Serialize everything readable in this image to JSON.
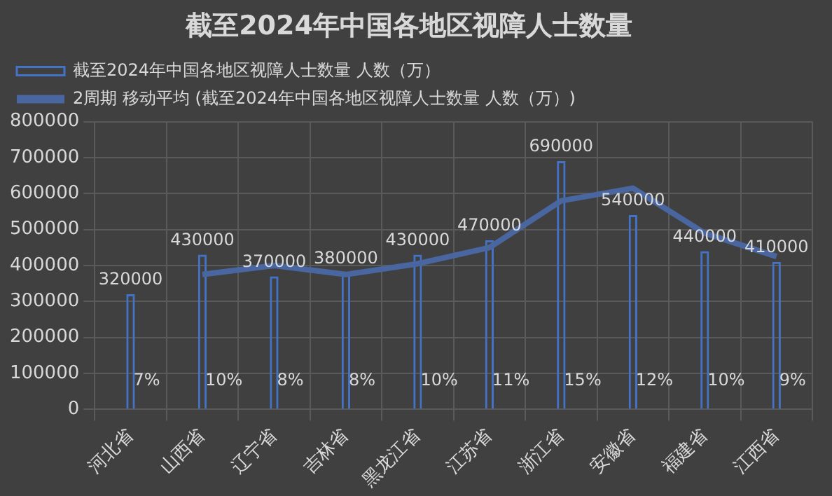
{
  "chart_data": {
    "type": "bar",
    "title": "截至2024年中国各地区视障人士数量",
    "categories": [
      "河北省",
      "山西省",
      "辽宁省",
      "吉林省",
      "黑龙江省",
      "江苏省",
      "浙江省",
      "安徽省",
      "福建省",
      "江西省"
    ],
    "series": [
      {
        "name": "截至2024年中国各地区视障人士数量 人数（万）",
        "color": "#4472c4",
        "values": [
          320000,
          430000,
          370000,
          380000,
          430000,
          470000,
          690000,
          540000,
          440000,
          410000
        ],
        "value_labels": [
          "320000",
          "430000",
          "370000",
          "380000",
          "430000",
          "470000",
          "690000",
          "540000",
          "440000",
          "410000"
        ]
      },
      {
        "name": "2周期 移动平均 (截至2024年中国各地区视障人士数量 人数（万）)",
        "type": "line",
        "color": "#4a66a0",
        "values": [
          null,
          375000,
          400000,
          375000,
          405000,
          450000,
          580000,
          615000,
          490000,
          425000
        ]
      }
    ],
    "annotations": [
      {
        "text": "7%",
        "x": "河北省",
        "y": 80000
      },
      {
        "text": "10%",
        "x": "山西省",
        "y": 80000
      },
      {
        "text": "8%",
        "x": "辽宁省",
        "y": 80000
      },
      {
        "text": "8%",
        "x": "吉林省",
        "y": 80000
      },
      {
        "text": "10%",
        "x": "黑龙江省",
        "y": 80000
      },
      {
        "text": "11%",
        "x": "江苏省",
        "y": 80000
      },
      {
        "text": "15%",
        "x": "浙江省",
        "y": 80000
      },
      {
        "text": "12%",
        "x": "安徽省",
        "y": 80000
      },
      {
        "text": "10%",
        "x": "福建省",
        "y": 80000
      },
      {
        "text": "9%",
        "x": "江西省",
        "y": 80000
      }
    ],
    "ylim": [
      0,
      800000
    ],
    "yticks": [
      0,
      100000,
      200000,
      300000,
      400000,
      500000,
      600000,
      700000,
      800000
    ],
    "grid": true,
    "legend": "top left",
    "marker": "none"
  }
}
